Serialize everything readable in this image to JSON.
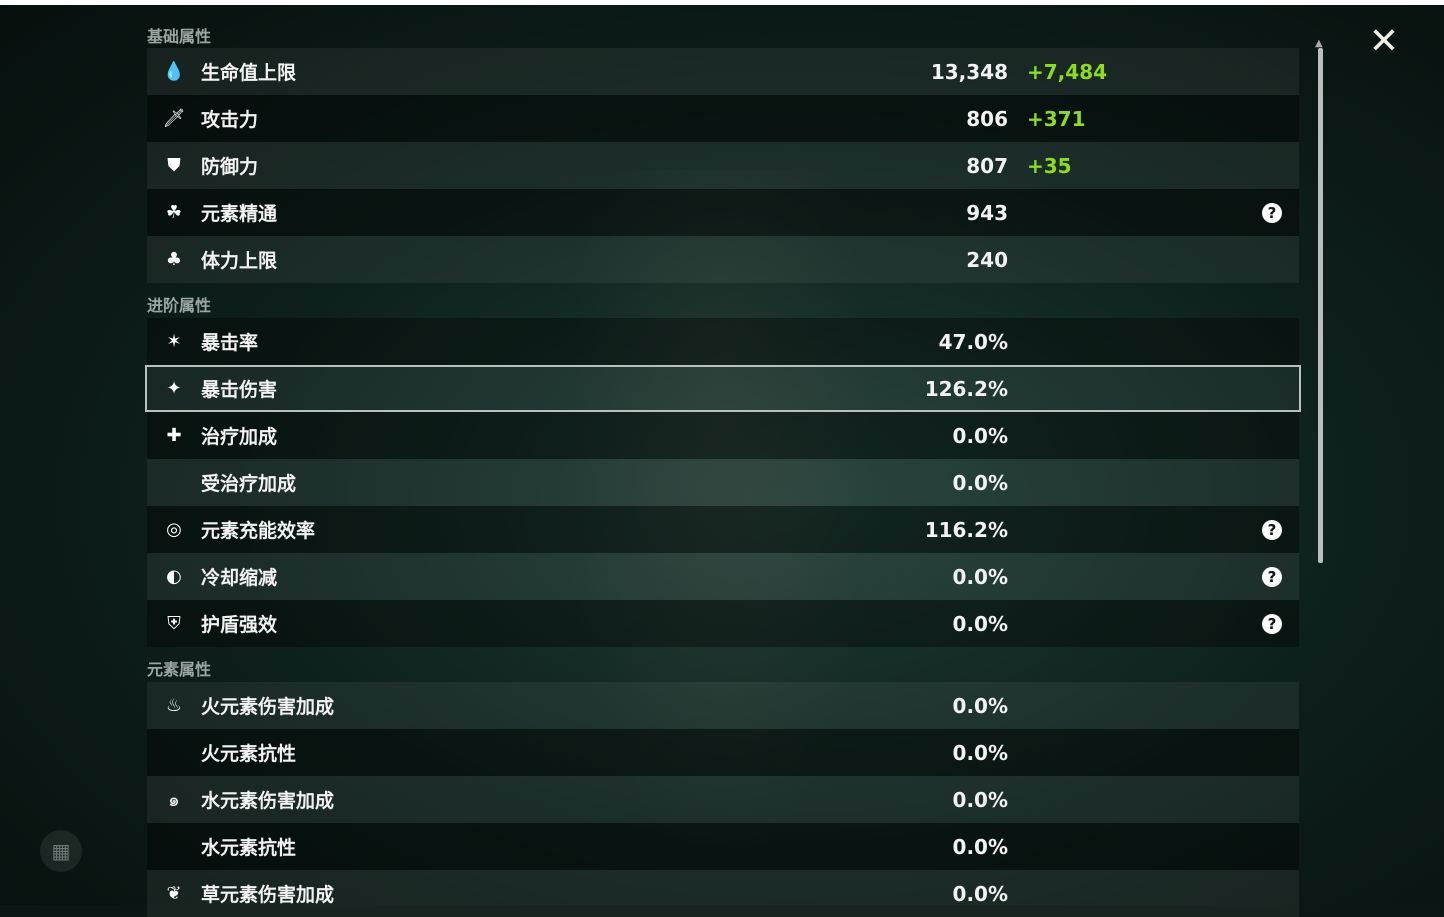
{
  "sections": {
    "base": "基础属性",
    "advanced": "进阶属性",
    "elemental": "元素属性"
  },
  "base_stats": [
    {
      "icon": "hp-drop-icon",
      "label": "生命值上限",
      "value": "13,348",
      "bonus": "+7,484"
    },
    {
      "icon": "sword-icon",
      "label": "攻击力",
      "value": "806",
      "bonus": "+371"
    },
    {
      "icon": "shield-icon",
      "label": "防御力",
      "value": "807",
      "bonus": "+35"
    },
    {
      "icon": "elemental-mastery-icon",
      "label": "元素精通",
      "value": "943",
      "help": "?"
    },
    {
      "icon": "stamina-icon",
      "label": "体力上限",
      "value": "240"
    }
  ],
  "advanced_stats": [
    {
      "icon": "crit-rate-icon",
      "label": "暴击率",
      "value": "47.0%"
    },
    {
      "icon": "crit-dmg-icon",
      "label": "暴击伤害",
      "value": "126.2%",
      "selected": true
    },
    {
      "icon": "healing-cross-icon",
      "label": "治疗加成",
      "value": "0.0%"
    },
    {
      "label": "受治疗加成",
      "value": "0.0%"
    },
    {
      "icon": "energy-recharge-icon",
      "label": "元素充能效率",
      "value": "116.2%",
      "help": "?"
    },
    {
      "icon": "cooldown-icon",
      "label": "冷却缩减",
      "value": "0.0%",
      "help": "?"
    },
    {
      "icon": "shield-strength-icon",
      "label": "护盾强效",
      "value": "0.0%",
      "help": "?"
    }
  ],
  "elemental_stats": [
    {
      "icon": "pyro-icon",
      "label": "火元素伤害加成",
      "value": "0.0%"
    },
    {
      "label": "火元素抗性",
      "value": "0.0%"
    },
    {
      "icon": "hydro-icon",
      "label": "水元素伤害加成",
      "value": "0.0%"
    },
    {
      "label": "水元素抗性",
      "value": "0.0%"
    },
    {
      "icon": "dendro-icon",
      "label": "草元素伤害加成",
      "value": "0.0%"
    }
  ],
  "colors": {
    "bonus": "#8fdc1f",
    "selected_border": "#b9c1bd"
  },
  "close_icon": "close-icon"
}
